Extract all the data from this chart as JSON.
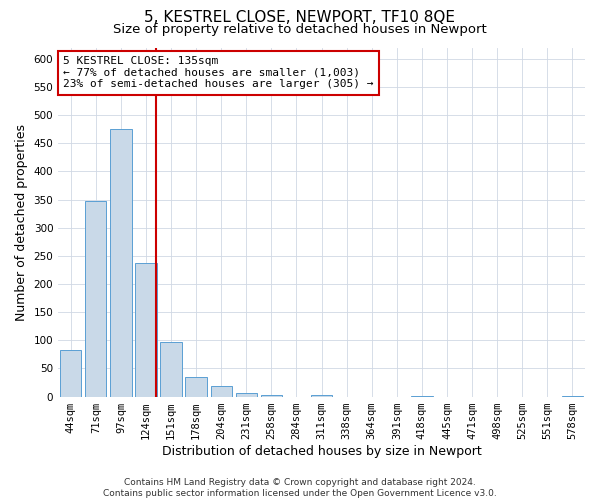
{
  "title": "5, KESTREL CLOSE, NEWPORT, TF10 8QE",
  "subtitle": "Size of property relative to detached houses in Newport",
  "xlabel": "Distribution of detached houses by size in Newport",
  "ylabel": "Number of detached properties",
  "bin_labels": [
    "44sqm",
    "71sqm",
    "97sqm",
    "124sqm",
    "151sqm",
    "178sqm",
    "204sqm",
    "231sqm",
    "258sqm",
    "284sqm",
    "311sqm",
    "338sqm",
    "364sqm",
    "391sqm",
    "418sqm",
    "445sqm",
    "471sqm",
    "498sqm",
    "525sqm",
    "551sqm",
    "578sqm"
  ],
  "bar_values": [
    83,
    348,
    476,
    237,
    97,
    35,
    18,
    7,
    2,
    0,
    2,
    0,
    0,
    0,
    1,
    0,
    0,
    0,
    0,
    0,
    1
  ],
  "bar_color": "#c9d9e8",
  "bar_edge_color": "#5a9fd4",
  "vline_color": "#cc0000",
  "annotation_line1": "5 KESTREL CLOSE: 135sqm",
  "annotation_line2": "← 77% of detached houses are smaller (1,003)",
  "annotation_line3": "23% of semi-detached houses are larger (305) →",
  "annotation_box_color": "#ffffff",
  "annotation_box_edge_color": "#cc0000",
  "ylim": [
    0,
    620
  ],
  "yticks": [
    0,
    50,
    100,
    150,
    200,
    250,
    300,
    350,
    400,
    450,
    500,
    550,
    600
  ],
  "footnote": "Contains HM Land Registry data © Crown copyright and database right 2024.\nContains public sector information licensed under the Open Government Licence v3.0.",
  "bg_color": "#ffffff",
  "grid_color": "#d0d8e4",
  "title_fontsize": 11,
  "subtitle_fontsize": 9.5,
  "annotation_fontsize": 8.0,
  "tick_fontsize": 7.5,
  "ylabel_fontsize": 9,
  "xlabel_fontsize": 9,
  "footnote_fontsize": 6.5
}
